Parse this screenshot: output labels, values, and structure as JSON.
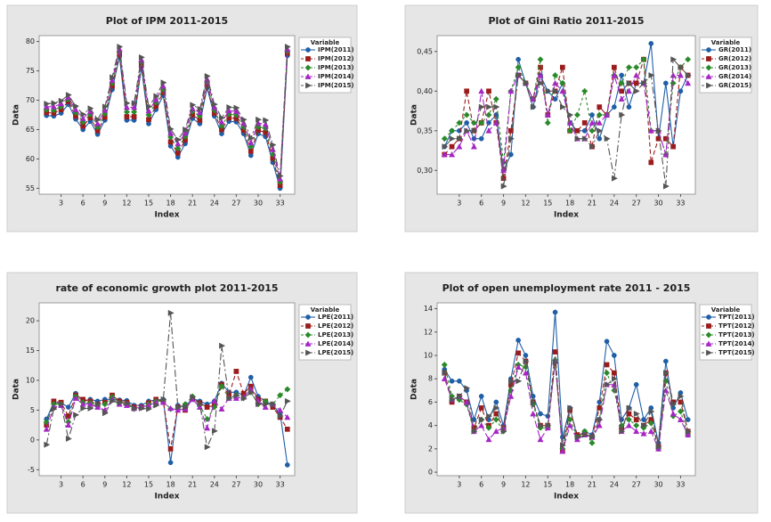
{
  "chart_data": [
    {
      "type": "line",
      "title": "Plot of IPM 2011-2015",
      "x_label": "Index",
      "y_label": "Data",
      "legend_title": "Variable",
      "x": [
        1,
        2,
        3,
        4,
        5,
        6,
        7,
        8,
        9,
        10,
        11,
        12,
        13,
        14,
        15,
        16,
        17,
        18,
        19,
        20,
        21,
        22,
        23,
        24,
        25,
        26,
        27,
        28,
        29,
        30,
        31,
        32,
        33,
        34
      ],
      "xlim": [
        0,
        35
      ],
      "xticks": [
        3,
        6,
        9,
        12,
        15,
        18,
        21,
        24,
        27,
        30,
        33
      ],
      "ylim": [
        54,
        81
      ],
      "yticks": [
        55,
        60,
        65,
        70,
        75,
        80
      ],
      "series": [
        {
          "name": "IPM(2011)",
          "color": "#1f5fa8",
          "marker": "circle",
          "dash": "none",
          "values": [
            67.4,
            67.3,
            67.8,
            69.3,
            66.8,
            65.0,
            66.4,
            64.2,
            66.6,
            71.8,
            77.4,
            66.6,
            66.6,
            75.6,
            66.0,
            68.4,
            70.8,
            62.2,
            60.3,
            62.6,
            66.9,
            66.0,
            72.1,
            67.3,
            64.3,
            66.4,
            66.3,
            64.3,
            60.6,
            64.3,
            63.8,
            59.4,
            55.0,
            77.6
          ]
        },
        {
          "name": "IPM(2012)",
          "color": "#9b1c1c",
          "marker": "square",
          "dash": "5,3",
          "values": [
            67.9,
            67.8,
            68.4,
            69.8,
            67.3,
            65.6,
            67.0,
            64.8,
            67.1,
            72.4,
            77.9,
            67.2,
            67.2,
            76.1,
            66.7,
            69.0,
            71.3,
            62.9,
            61.0,
            63.2,
            67.5,
            66.6,
            72.6,
            67.8,
            65.0,
            67.0,
            66.9,
            64.9,
            61.3,
            64.9,
            64.5,
            60.1,
            55.5,
            78.0
          ]
        },
        {
          "name": "IPM(2013)",
          "color": "#2a8a2a",
          "marker": "diamond",
          "dash": "3,3",
          "values": [
            68.4,
            68.3,
            68.9,
            70.2,
            67.9,
            66.3,
            67.6,
            65.4,
            67.7,
            72.9,
            78.3,
            68.0,
            68.0,
            76.5,
            67.5,
            69.6,
            71.8,
            63.7,
            61.8,
            63.8,
            68.1,
            67.3,
            73.1,
            68.3,
            65.6,
            67.6,
            67.5,
            65.5,
            62.1,
            65.5,
            65.2,
            60.8,
            56.1,
            78.4
          ]
        },
        {
          "name": "IPM(2014)",
          "color": "#a526c4",
          "marker": "triangle",
          "dash": "8,3",
          "values": [
            68.9,
            68.9,
            69.4,
            70.5,
            68.4,
            66.9,
            68.1,
            66.0,
            68.3,
            73.4,
            78.7,
            68.8,
            68.8,
            76.9,
            68.2,
            70.1,
            72.4,
            64.4,
            62.6,
            64.4,
            68.6,
            67.9,
            73.6,
            68.8,
            66.3,
            68.2,
            68.1,
            66.1,
            62.8,
            66.1,
            65.9,
            61.6,
            56.6,
            78.7
          ]
        },
        {
          "name": "IPM(2015)",
          "color": "#555555",
          "marker": "arrow",
          "dash": "8,3,2,3",
          "values": [
            69.4,
            69.5,
            69.9,
            70.9,
            69.0,
            67.6,
            68.6,
            66.7,
            68.9,
            73.9,
            79.1,
            69.5,
            69.5,
            77.3,
            68.9,
            70.7,
            73.0,
            65.1,
            63.3,
            65.0,
            69.2,
            68.5,
            74.1,
            69.3,
            67.0,
            68.8,
            68.7,
            66.7,
            63.6,
            66.7,
            66.6,
            62.4,
            57.1,
            79.1
          ]
        }
      ]
    },
    {
      "type": "line",
      "title": "Plot of Gini Ratio 2011-2015",
      "x_label": "Index",
      "y_label": "Data",
      "legend_title": "Variable",
      "x": [
        1,
        2,
        3,
        4,
        5,
        6,
        7,
        8,
        9,
        10,
        11,
        12,
        13,
        14,
        15,
        16,
        17,
        18,
        19,
        20,
        21,
        22,
        23,
        24,
        25,
        26,
        27,
        28,
        29,
        30,
        31,
        32,
        33,
        34
      ],
      "xlim": [
        0,
        35
      ],
      "xticks": [
        3,
        6,
        9,
        12,
        15,
        18,
        21,
        24,
        27,
        30,
        33
      ],
      "ylim": [
        0.27,
        0.47
      ],
      "yticks": [
        {
          "value": 0.3,
          "label": "0,30"
        },
        {
          "value": 0.35,
          "label": "0,35"
        },
        {
          "value": 0.4,
          "label": "0,40"
        },
        {
          "value": 0.45,
          "label": "0,45"
        }
      ],
      "series": [
        {
          "name": "GR(2011)",
          "color": "#1f5fa8",
          "marker": "circle",
          "dash": "none",
          "values": [
            0.33,
            0.35,
            0.35,
            0.36,
            0.34,
            0.34,
            0.36,
            0.37,
            0.3,
            0.32,
            0.44,
            0.41,
            0.38,
            0.42,
            0.4,
            0.39,
            0.41,
            0.36,
            0.35,
            0.35,
            0.37,
            0.34,
            0.37,
            0.38,
            0.42,
            0.38,
            0.41,
            0.41,
            0.46,
            0.34,
            0.41,
            0.33,
            0.4,
            0.42
          ]
        },
        {
          "name": "GR(2012)",
          "color": "#9b1c1c",
          "marker": "square",
          "dash": "5,3",
          "values": [
            0.32,
            0.33,
            0.34,
            0.4,
            0.35,
            0.36,
            0.4,
            0.36,
            0.29,
            0.35,
            0.42,
            0.41,
            0.39,
            0.43,
            0.37,
            0.4,
            0.43,
            0.35,
            0.35,
            0.36,
            0.33,
            0.38,
            0.37,
            0.43,
            0.4,
            0.41,
            0.41,
            0.44,
            0.31,
            0.34,
            0.34,
            0.33,
            0.43,
            0.42
          ]
        },
        {
          "name": "GR(2013)",
          "color": "#2a8a2a",
          "marker": "diamond",
          "dash": "3,3",
          "values": [
            0.34,
            0.35,
            0.36,
            0.37,
            0.36,
            0.36,
            0.37,
            0.39,
            0.31,
            0.4,
            0.43,
            0.41,
            0.39,
            0.44,
            0.36,
            0.42,
            0.41,
            0.35,
            0.37,
            0.4,
            0.35,
            0.37,
            0.37,
            0.42,
            0.41,
            0.43,
            0.43,
            0.44,
            0.35,
            0.35,
            0.32,
            0.41,
            0.43,
            0.44
          ]
        },
        {
          "name": "GR(2014)",
          "color": "#a526c4",
          "marker": "triangle",
          "dash": "8,3",
          "values": [
            0.32,
            0.32,
            0.33,
            0.35,
            0.33,
            0.4,
            0.35,
            0.36,
            0.3,
            0.4,
            0.42,
            0.41,
            0.39,
            0.42,
            0.37,
            0.41,
            0.4,
            0.36,
            0.34,
            0.34,
            0.36,
            0.36,
            0.37,
            0.42,
            0.39,
            0.4,
            0.42,
            0.41,
            0.35,
            0.35,
            0.32,
            0.42,
            0.42,
            0.41
          ]
        },
        {
          "name": "GR(2015)",
          "color": "#555555",
          "marker": "arrow",
          "dash": "8,3,2,3",
          "values": [
            0.33,
            0.34,
            0.34,
            0.35,
            0.35,
            0.38,
            0.38,
            0.38,
            0.28,
            0.34,
            0.42,
            0.41,
            0.38,
            0.41,
            0.4,
            0.4,
            0.38,
            0.37,
            0.34,
            0.34,
            0.33,
            0.35,
            0.34,
            0.29,
            0.37,
            0.41,
            0.4,
            0.41,
            0.42,
            0.35,
            0.28,
            0.44,
            0.43,
            0.42
          ]
        }
      ]
    },
    {
      "type": "line",
      "title": "rate of economic growth plot 2011-2015",
      "x_label": "Index",
      "y_label": "Data",
      "legend_title": "Variable",
      "x": [
        1,
        2,
        3,
        4,
        5,
        6,
        7,
        8,
        9,
        10,
        11,
        12,
        13,
        14,
        15,
        16,
        17,
        18,
        19,
        20,
        21,
        22,
        23,
        24,
        25,
        26,
        27,
        28,
        29,
        30,
        31,
        32,
        33,
        34
      ],
      "xlim": [
        0,
        35
      ],
      "xticks": [
        3,
        6,
        9,
        12,
        15,
        18,
        21,
        24,
        27,
        30,
        33
      ],
      "ylim": [
        -6,
        23
      ],
      "yticks": [
        -5,
        0,
        5,
        10,
        15,
        20
      ],
      "series": [
        {
          "name": "LPE(2011)",
          "color": "#1f5fa8",
          "marker": "circle",
          "dash": "none",
          "values": [
            3.5,
            6.3,
            6.2,
            5.5,
            7.8,
            6.5,
            6.8,
            6.5,
            6.8,
            6.8,
            6.7,
            6.6,
            5.8,
            5.8,
            6.5,
            6.7,
            6.8,
            -3.8,
            5.8,
            5.5,
            7.0,
            6.5,
            6.0,
            6.5,
            9.5,
            8.0,
            8.0,
            7.5,
            10.5,
            7.3,
            6.5,
            5.8,
            4.5,
            -4.2
          ]
        },
        {
          "name": "LPE(2012)",
          "color": "#9b1c1c",
          "marker": "square",
          "dash": "5,3",
          "values": [
            2.5,
            6.5,
            6.3,
            4.0,
            7.5,
            6.8,
            6.5,
            6.0,
            6.3,
            7.5,
            6.5,
            6.3,
            5.5,
            5.5,
            6.2,
            6.8,
            6.5,
            -1.5,
            5.5,
            5.0,
            7.0,
            6.2,
            5.5,
            5.8,
            9.3,
            7.5,
            11.5,
            7.8,
            9.0,
            6.8,
            6.5,
            5.5,
            3.8,
            1.8
          ]
        },
        {
          "name": "LPE(2013)",
          "color": "#2a8a2a",
          "marker": "diamond",
          "dash": "3,3",
          "values": [
            3.0,
            6.0,
            6.0,
            3.0,
            7.3,
            6.3,
            6.2,
            5.8,
            6.0,
            7.2,
            6.2,
            6.0,
            5.2,
            5.4,
            6.0,
            6.5,
            6.5,
            5.2,
            5.2,
            6.0,
            7.3,
            5.8,
            3.5,
            5.5,
            9.0,
            7.0,
            7.5,
            7.0,
            8.0,
            6.0,
            6.5,
            6.0,
            7.5,
            8.5
          ]
        },
        {
          "name": "LPE(2014)",
          "color": "#a526c4",
          "marker": "triangle",
          "dash": "8,3",
          "values": [
            1.8,
            5.5,
            5.8,
            2.5,
            7.0,
            6.0,
            6.0,
            5.5,
            5.0,
            6.8,
            6.0,
            5.8,
            5.3,
            5.5,
            5.8,
            6.3,
            6.3,
            5.3,
            5.0,
            5.2,
            6.8,
            5.5,
            2.0,
            6.5,
            5.2,
            7.0,
            7.0,
            7.2,
            8.5,
            6.5,
            5.5,
            6.0,
            5.0,
            3.8
          ]
        },
        {
          "name": "LPE(2015)",
          "color": "#555555",
          "marker": "arrow",
          "dash": "8,3,2,3",
          "values": [
            -0.8,
            5.2,
            6.0,
            0.2,
            4.2,
            5.3,
            5.3,
            6.0,
            4.5,
            6.5,
            6.2,
            6.2,
            5.3,
            5.3,
            5.2,
            5.8,
            6.8,
            21.3,
            5.5,
            5.5,
            7.2,
            6.0,
            -1.2,
            1.5,
            15.8,
            7.0,
            7.5,
            7.0,
            8.0,
            6.0,
            6.0,
            6.0,
            4.0,
            6.5
          ]
        }
      ]
    },
    {
      "type": "line",
      "title": "Plot of open unemployment rate 2011 - 2015",
      "x_label": "Index",
      "y_label": "Data",
      "legend_title": "Variable",
      "x": [
        1,
        2,
        3,
        4,
        5,
        6,
        7,
        8,
        9,
        10,
        11,
        12,
        13,
        14,
        15,
        16,
        17,
        18,
        19,
        20,
        21,
        22,
        23,
        24,
        25,
        26,
        27,
        28,
        29,
        30,
        31,
        32,
        33,
        34
      ],
      "xlim": [
        0,
        35
      ],
      "xticks": [
        3,
        6,
        9,
        12,
        15,
        18,
        21,
        24,
        27,
        30,
        33
      ],
      "ylim": [
        -0.3,
        14.5
      ],
      "yticks": [
        0,
        2,
        4,
        6,
        8,
        10,
        12,
        14
      ],
      "series": [
        {
          "name": "TPT(2011)",
          "color": "#1f5fa8",
          "marker": "circle",
          "dash": "none",
          "values": [
            8.8,
            7.8,
            7.8,
            7.0,
            4.5,
            6.5,
            4.5,
            6.0,
            4.0,
            8.0,
            11.3,
            10.0,
            6.5,
            5.0,
            4.8,
            13.7,
            3.0,
            5.5,
            3.0,
            3.5,
            3.2,
            6.0,
            11.2,
            10.0,
            4.5,
            5.5,
            7.5,
            4.5,
            5.5,
            2.5,
            9.5,
            5.5,
            6.8,
            4.5
          ]
        },
        {
          "name": "TPT(2012)",
          "color": "#9b1c1c",
          "marker": "square",
          "dash": "5,3",
          "values": [
            8.5,
            6.0,
            6.5,
            6.0,
            3.8,
            5.5,
            4.0,
            5.0,
            3.8,
            7.5,
            10.2,
            9.5,
            6.0,
            4.0,
            4.0,
            10.3,
            1.8,
            5.3,
            3.2,
            3.3,
            3.0,
            5.5,
            9.2,
            8.5,
            3.8,
            5.0,
            4.5,
            4.0,
            4.5,
            2.2,
            8.5,
            6.0,
            6.0,
            3.5
          ]
        },
        {
          "name": "TPT(2013)",
          "color": "#2a8a2a",
          "marker": "diamond",
          "dash": "3,3",
          "values": [
            9.2,
            6.5,
            6.2,
            5.8,
            3.5,
            4.5,
            3.8,
            4.5,
            3.5,
            7.0,
            9.2,
            9.0,
            5.8,
            3.8,
            3.8,
            9.6,
            2.0,
            4.5,
            3.0,
            3.5,
            2.5,
            4.5,
            8.5,
            7.0,
            4.0,
            4.5,
            4.0,
            3.8,
            4.2,
            2.0,
            7.8,
            4.8,
            5.2,
            3.2
          ]
        },
        {
          "name": "TPT(2014)",
          "color": "#a526c4",
          "marker": "triangle",
          "dash": "8,3",
          "values": [
            8.0,
            6.2,
            6.5,
            6.0,
            3.5,
            4.0,
            2.8,
            3.5,
            3.8,
            6.5,
            9.0,
            8.5,
            5.0,
            2.8,
            3.8,
            9.5,
            1.8,
            4.0,
            2.8,
            3.2,
            3.0,
            4.0,
            7.5,
            7.5,
            3.5,
            4.0,
            3.5,
            3.3,
            3.5,
            2.0,
            7.0,
            5.0,
            4.5,
            3.2
          ]
        },
        {
          "name": "TPT(2015)",
          "color": "#555555",
          "marker": "arrow",
          "dash": "8,3,2,3",
          "values": [
            8.5,
            6.2,
            6.5,
            7.2,
            3.5,
            4.5,
            4.8,
            5.5,
            3.5,
            7.8,
            7.8,
            9.5,
            6.0,
            4.0,
            4.0,
            9.4,
            2.3,
            5.5,
            3.0,
            3.2,
            3.0,
            4.5,
            7.5,
            8.0,
            3.5,
            5.5,
            5.0,
            4.0,
            5.2,
            2.2,
            8.5,
            5.8,
            6.5,
            3.5
          ]
        }
      ]
    }
  ]
}
